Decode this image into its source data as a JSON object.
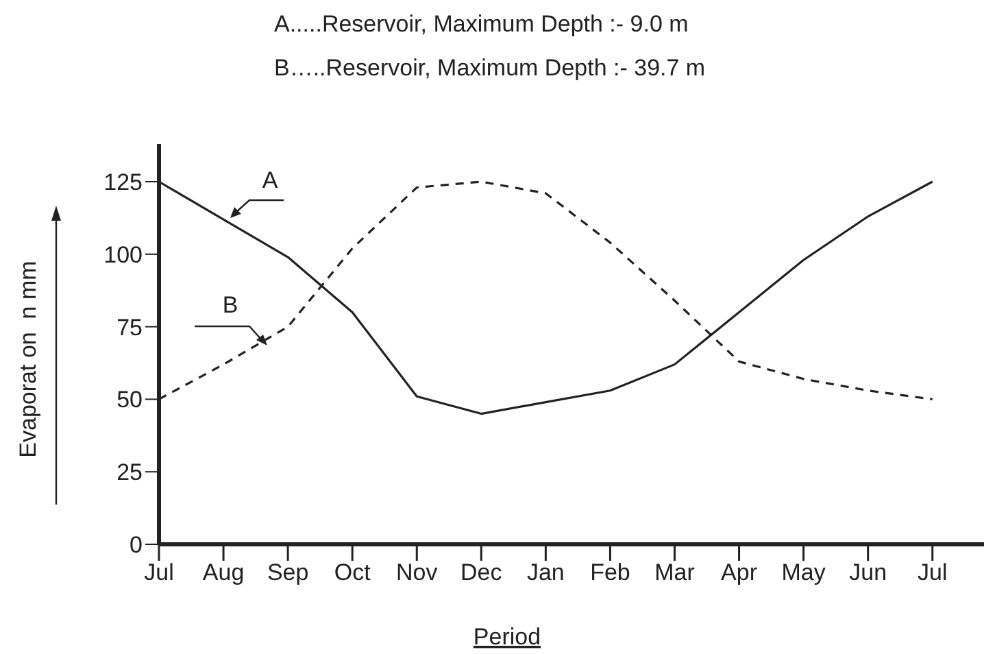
{
  "chart_data": {
    "type": "line",
    "title": "A.....Reservoir, Maximum Depth  :- 9.0 m",
    "subtitle": "B…..Reservoir, Maximum Depth :- 39.7 m",
    "xlabel": "Period",
    "ylabel": "Evaporat on  n mm",
    "categories": [
      "Jul",
      "Aug",
      "Sep",
      "Oct",
      "Nov",
      "Dec",
      "Jan",
      "Feb",
      "Mar",
      "Apr",
      "May",
      "Jun",
      "Jul"
    ],
    "ylim": [
      0,
      138
    ],
    "yticks": [
      0,
      25,
      50,
      75,
      100,
      125
    ],
    "grid": false,
    "legend": false,
    "marker": "none",
    "series": [
      {
        "name": "A",
        "color": "#222222",
        "line_style": "solid",
        "values": [
          125,
          112,
          99,
          80,
          51,
          45,
          49,
          53,
          62,
          80,
          98,
          113,
          125
        ]
      },
      {
        "name": "B",
        "color": "#222222",
        "line_style": "dashed",
        "values": [
          50,
          62,
          75,
          102,
          123,
          125,
          121,
          104,
          84,
          63,
          57,
          53,
          50
        ]
      }
    ]
  }
}
